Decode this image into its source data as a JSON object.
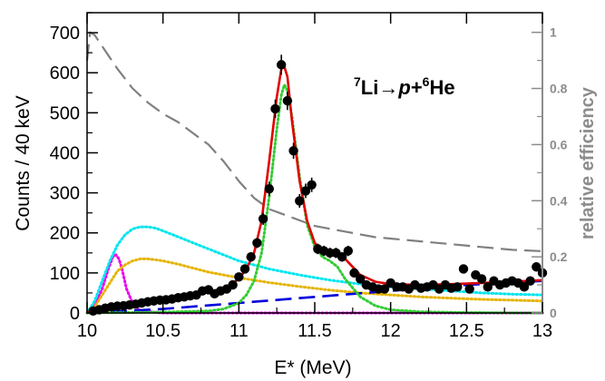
{
  "chart_data": {
    "type": "scatter",
    "xlabel": "E* (MeV)",
    "ylabel": "Counts / 40 keV",
    "y2label": "relative efficiency",
    "xlim": [
      10,
      13
    ],
    "ylim": [
      0,
      750
    ],
    "y2lim": [
      0,
      1.07
    ],
    "xticks": [
      10,
      10.5,
      11,
      11.5,
      12,
      12.5,
      13
    ],
    "xtick_labels": [
      "10",
      "10.5",
      "11",
      "11.5",
      "12",
      "12.5",
      "13"
    ],
    "yticks": [
      0,
      100,
      200,
      300,
      400,
      500,
      600,
      700
    ],
    "ytick_labels": [
      "0",
      "100",
      "200",
      "300",
      "400",
      "500",
      "600",
      "700"
    ],
    "y2ticks": [
      0,
      0.2,
      0.4,
      0.6,
      0.8,
      1
    ],
    "y2tick_labels": [
      "0",
      "0.2",
      "0.4",
      "0.6",
      "0.8",
      "1"
    ],
    "annotation": {
      "mass_a": "7",
      "element_a": "Li",
      "arrow": "→",
      "particle": "p",
      "plus": "+",
      "mass_b": "6",
      "element_b": "He"
    },
    "colors": {
      "data": "#000000",
      "fit_total": "#e00000",
      "efficiency": "#808080",
      "peak": "#33cc33",
      "background": "#0000dd",
      "cyan_component": "#00e5ee",
      "orange_component": "#e6b400",
      "magenta_component": "#ee00ee"
    },
    "series": [
      {
        "style": "points_with_errors",
        "color_key": "data",
        "x": [
          10.04,
          10.08,
          10.12,
          10.16,
          10.2,
          10.24,
          10.28,
          10.32,
          10.36,
          10.4,
          10.44,
          10.48,
          10.52,
          10.56,
          10.6,
          10.64,
          10.68,
          10.72,
          10.76,
          10.8,
          10.84,
          10.88,
          10.92,
          10.96,
          11.0,
          11.04,
          11.08,
          11.12,
          11.16,
          11.2,
          11.24,
          11.28,
          11.32,
          11.36,
          11.4,
          11.44,
          11.48,
          11.52,
          11.56,
          11.6,
          11.64,
          11.68,
          11.72,
          11.76,
          11.8,
          11.84,
          11.88,
          11.92,
          11.96,
          12.0,
          12.04,
          12.08,
          12.12,
          12.16,
          12.2,
          12.24,
          12.28,
          12.32,
          12.36,
          12.4,
          12.44,
          12.48,
          12.52,
          12.56,
          12.6,
          12.64,
          12.68,
          12.72,
          12.76,
          12.8,
          12.84,
          12.88,
          12.92,
          12.96,
          13.0
        ],
        "y": [
          5,
          8,
          12,
          15,
          17,
          18,
          20,
          22,
          25,
          28,
          30,
          32,
          33,
          35,
          38,
          40,
          43,
          45,
          55,
          58,
          48,
          55,
          60,
          70,
          90,
          110,
          140,
          175,
          235,
          310,
          510,
          620,
          530,
          405,
          280,
          305,
          320,
          160,
          155,
          150,
          150,
          140,
          155,
          100,
          85,
          70,
          65,
          60,
          60,
          75,
          65,
          65,
          60,
          70,
          62,
          65,
          70,
          60,
          70,
          62,
          65,
          110,
          60,
          95,
          85,
          65,
          80,
          70,
          75,
          80,
          75,
          65,
          80,
          115,
          100
        ],
        "yerr": [
          3,
          4,
          4,
          5,
          5,
          5,
          5,
          5,
          5,
          6,
          6,
          6,
          6,
          6,
          7,
          7,
          7,
          7,
          8,
          8,
          7,
          8,
          8,
          9,
          10,
          11,
          12,
          13,
          15,
          18,
          23,
          25,
          23,
          20,
          17,
          18,
          18,
          13,
          13,
          13,
          13,
          12,
          13,
          10,
          9,
          9,
          8,
          8,
          8,
          9,
          8,
          8,
          8,
          9,
          8,
          8,
          9,
          8,
          9,
          8,
          8,
          11,
          8,
          10,
          9,
          8,
          9,
          9,
          9,
          9,
          9,
          8,
          9,
          11,
          10
        ]
      },
      {
        "style": "line",
        "color_key": "fit_total",
        "x": [
          10.0,
          10.1,
          10.2,
          10.3,
          10.4,
          10.5,
          10.6,
          10.7,
          10.8,
          10.9,
          10.95,
          11.0,
          11.05,
          11.1,
          11.15,
          11.2,
          11.25,
          11.28,
          11.3,
          11.32,
          11.35,
          11.4,
          11.45,
          11.5,
          11.55,
          11.6,
          11.65,
          11.7,
          11.75,
          11.8,
          11.9,
          12.0,
          12.2,
          12.4,
          12.6,
          12.8,
          13.0
        ],
        "y": [
          2,
          10,
          18,
          25,
          30,
          35,
          40,
          45,
          52,
          62,
          72,
          85,
          110,
          150,
          230,
          380,
          540,
          610,
          615,
          590,
          480,
          330,
          230,
          175,
          155,
          152,
          148,
          135,
          115,
          95,
          78,
          72,
          70,
          72,
          75,
          78,
          82
        ]
      },
      {
        "style": "dotted",
        "color_key": "peak",
        "x": [
          10.0,
          10.5,
          10.8,
          10.9,
          11.0,
          11.05,
          11.1,
          11.15,
          11.2,
          11.25,
          11.28,
          11.3,
          11.32,
          11.35,
          11.4,
          11.45,
          11.5,
          11.55,
          11.6,
          11.65,
          11.7,
          11.8,
          11.9,
          12.0,
          12.2,
          12.5,
          13.0
        ],
        "y": [
          0,
          2,
          5,
          10,
          25,
          45,
          80,
          150,
          290,
          460,
          545,
          570,
          555,
          490,
          340,
          220,
          165,
          140,
          130,
          115,
          85,
          40,
          18,
          8,
          3,
          1,
          0
        ]
      },
      {
        "style": "dashed",
        "color_key": "background",
        "x": [
          10.0,
          10.5,
          11.0,
          11.5,
          12.0,
          12.5,
          13.0
        ],
        "y": [
          0,
          10,
          25,
          40,
          55,
          70,
          80
        ]
      },
      {
        "style": "dotted",
        "color_key": "cyan_component",
        "x": [
          10.0,
          10.05,
          10.1,
          10.15,
          10.2,
          10.25,
          10.3,
          10.35,
          10.4,
          10.45,
          10.5,
          10.6,
          10.7,
          10.8,
          10.9,
          11.0,
          11.2,
          11.4,
          11.6,
          11.8,
          12.0,
          12.2,
          12.4,
          12.6,
          12.8,
          13.0
        ],
        "y": [
          0,
          30,
          80,
          130,
          170,
          195,
          210,
          215,
          215,
          212,
          205,
          190,
          175,
          160,
          145,
          130,
          110,
          95,
          82,
          72,
          65,
          60,
          55,
          50,
          47,
          45
        ]
      },
      {
        "style": "dotted",
        "color_key": "orange_component",
        "x": [
          10.0,
          10.05,
          10.1,
          10.15,
          10.2,
          10.25,
          10.3,
          10.35,
          10.4,
          10.45,
          10.5,
          10.6,
          10.7,
          10.8,
          10.9,
          11.0,
          11.2,
          11.4,
          11.6,
          11.8,
          12.0,
          12.2,
          12.4,
          12.6,
          12.8,
          13.0
        ],
        "y": [
          0,
          15,
          45,
          75,
          105,
          120,
          130,
          135,
          135,
          133,
          130,
          122,
          112,
          102,
          95,
          88,
          76,
          66,
          57,
          50,
          45,
          40,
          37,
          34,
          32,
          30
        ]
      },
      {
        "style": "dotted",
        "color_key": "magenta_component",
        "x": [
          10.0,
          10.05,
          10.1,
          10.14,
          10.17,
          10.19,
          10.21,
          10.23,
          10.26,
          10.3,
          10.35,
          10.5,
          13.0
        ],
        "y": [
          0,
          20,
          60,
          110,
          140,
          145,
          135,
          110,
          60,
          25,
          5,
          0,
          0
        ]
      },
      {
        "style": "dashed",
        "color_key": "efficiency",
        "axis": "right",
        "x": [
          10.0,
          10.02,
          10.05,
          10.1,
          10.2,
          10.3,
          10.4,
          10.5,
          10.6,
          10.7,
          10.8,
          10.9,
          11.0,
          11.1,
          11.2,
          11.3,
          11.4,
          11.5,
          11.6,
          11.7,
          11.8,
          11.9,
          12.0,
          12.2,
          12.4,
          12.6,
          12.8,
          13.0
        ],
        "y": [
          0.9,
          1.0,
          0.99,
          0.95,
          0.87,
          0.8,
          0.75,
          0.71,
          0.68,
          0.64,
          0.6,
          0.54,
          0.47,
          0.41,
          0.37,
          0.35,
          0.33,
          0.31,
          0.3,
          0.29,
          0.28,
          0.27,
          0.265,
          0.255,
          0.245,
          0.235,
          0.225,
          0.22
        ]
      }
    ]
  }
}
